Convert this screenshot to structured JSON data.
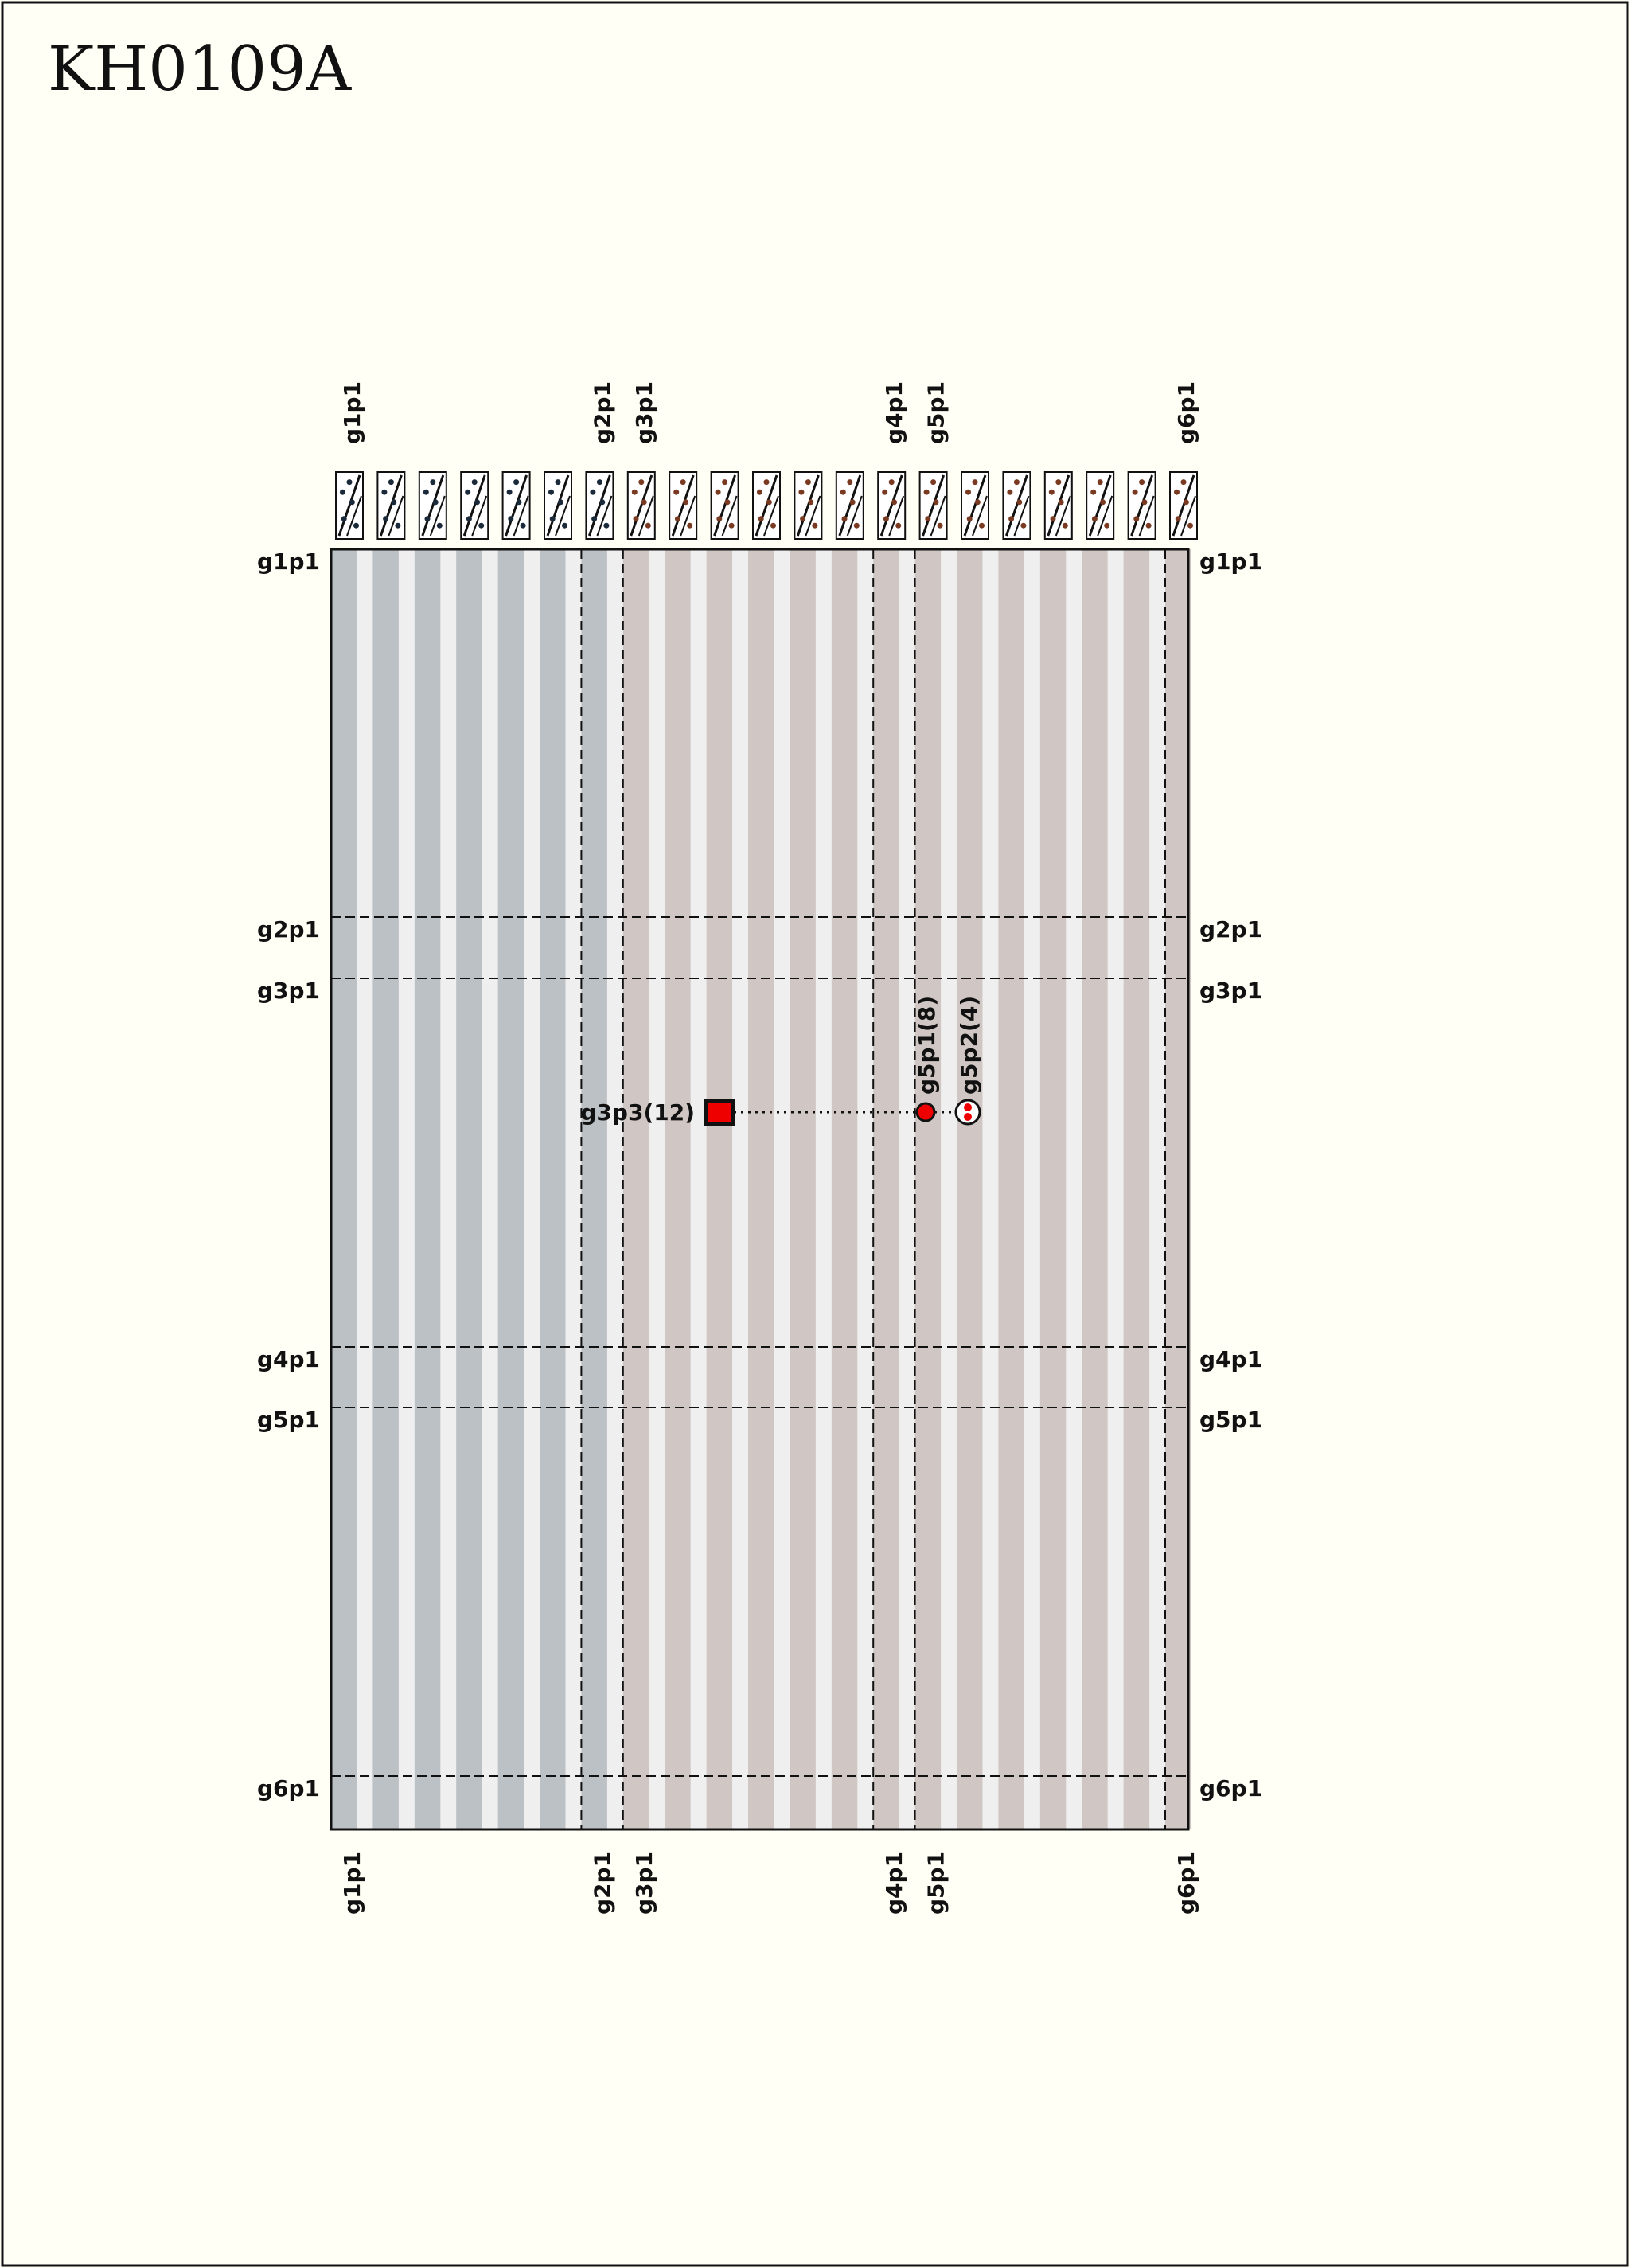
{
  "title": "KH0109A",
  "groups": [
    {
      "label": "g1p1",
      "color": "#bcc1c5"
    },
    {
      "label": "g2p1",
      "color": "#bcc1c5"
    },
    {
      "label": "g3p1",
      "color": "#d0c7c4"
    },
    {
      "label": "g4p1",
      "color": "#d0c7c4"
    },
    {
      "label": "g5p1",
      "color": "#d0c7c4"
    },
    {
      "label": "g6p1",
      "color": "#d0c7c4"
    }
  ],
  "stripe_light": "#efefef",
  "background": "#fffff6",
  "annotations": {
    "box": {
      "label": "g3p3(12)",
      "color": "#ee0000"
    },
    "circle_a": {
      "label": "g5p1(8)",
      "color": "#ee0000"
    },
    "circle_b": {
      "label": "g5p2(4)",
      "color": "#ee0000"
    }
  }
}
